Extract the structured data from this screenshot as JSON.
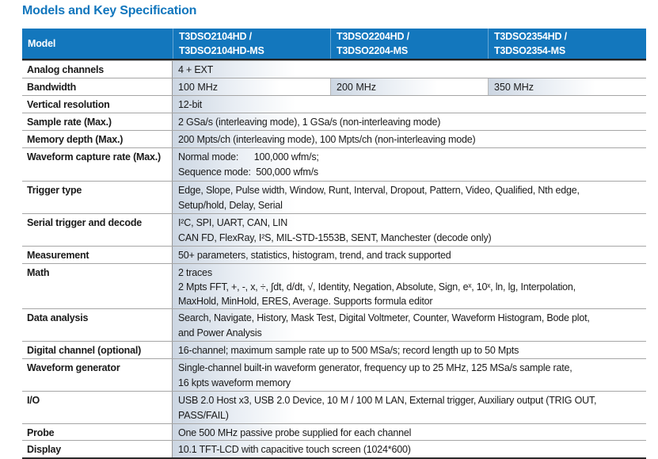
{
  "page": {
    "title": "Models and Key Specification"
  },
  "colors": {
    "title_blue": "#1176bd",
    "header_bg": "#1377bd",
    "cell_gradient_start": "#ccd6e2",
    "dark_rule": "#2b2b2b",
    "light_rule": "#a6a6a6"
  },
  "table": {
    "header": {
      "label": "Model",
      "models": [
        {
          "lines": [
            "T3DSO2104HD /",
            "T3DSO2104HD-MS"
          ]
        },
        {
          "lines": [
            "T3DSO2204HD /",
            "T3DSO2204-MS"
          ]
        },
        {
          "lines": [
            "T3DSO2354HD /",
            "T3DSO2354-MS"
          ]
        }
      ]
    },
    "rows": [
      {
        "label": "Analog channels",
        "lines": [
          "4 + EXT"
        ]
      },
      {
        "label": "Bandwidth",
        "values": [
          "100 MHz",
          "200 MHz",
          "350 MHz"
        ]
      },
      {
        "label": "Vertical resolution",
        "lines": [
          "12-bit"
        ]
      },
      {
        "label": "Sample rate (Max.)",
        "lines": [
          "2 GSa/s (interleaving mode), 1 GSa/s (non-interleaving mode)"
        ]
      },
      {
        "label": "Memory depth (Max.)",
        "lines": [
          "200 Mpts/ch (interleaving mode), 100 Mpts/ch (non-interleaving mode)"
        ]
      },
      {
        "label": "Waveform capture rate (Max.)",
        "lines": [
          "Normal mode:      100,000 wfm/s;",
          "Sequence mode:  500,000 wfm/s"
        ]
      },
      {
        "label": "Trigger type",
        "lines": [
          "Edge, Slope, Pulse width, Window, Runt, Interval, Dropout, Pattern, Video, Qualified, Nth edge,",
          "Setup/hold, Delay, Serial"
        ]
      },
      {
        "label": "Serial trigger and decode",
        "lines": [
          "I²C, SPI, UART, CAN, LIN",
          "CAN FD, FlexRay, I²S, MIL-STD-1553B, SENT, Manchester (decode only)"
        ]
      },
      {
        "label": "Measurement",
        "lines": [
          "50+ parameters, statistics, histogram, trend, and track supported"
        ]
      },
      {
        "label": "Math",
        "lines": [
          "2 traces",
          "2 Mpts FFT, +, -, x, ÷, ∫dt, d/dt, √, Identity, Negation, Absolute, Sign, eˣ, 10ˣ, ln, lg, Interpolation,",
          "MaxHold, MinHold, ERES, Average. Supports formula editor"
        ]
      },
      {
        "label": "Data analysis",
        "lines": [
          "Search, Navigate, History, Mask Test, Digital Voltmeter, Counter, Waveform Histogram, Bode plot,",
          "and Power Analysis"
        ]
      },
      {
        "label": "Digital channel (optional)",
        "lines": [
          "16-channel; maximum sample rate up to 500 MSa/s; record length up to 50 Mpts"
        ]
      },
      {
        "label": "Waveform generator",
        "lines": [
          "Single-channel built-in waveform generator, frequency up to 25 MHz, 125 MSa/s sample rate,",
          "16 kpts waveform memory"
        ]
      },
      {
        "label": "I/O",
        "lines": [
          "USB 2.0 Host x3, USB 2.0 Device, 10 M / 100 M LAN, External trigger, Auxiliary output (TRIG OUT,",
          "PASS/FAIL)"
        ]
      },
      {
        "label": "Probe",
        "lines": [
          "One 500 MHz passive probe supplied for each channel"
        ]
      },
      {
        "label": "Display",
        "lines": [
          "10.1 TFT-LCD with capacitive touch screen (1024*600)"
        ]
      }
    ]
  }
}
